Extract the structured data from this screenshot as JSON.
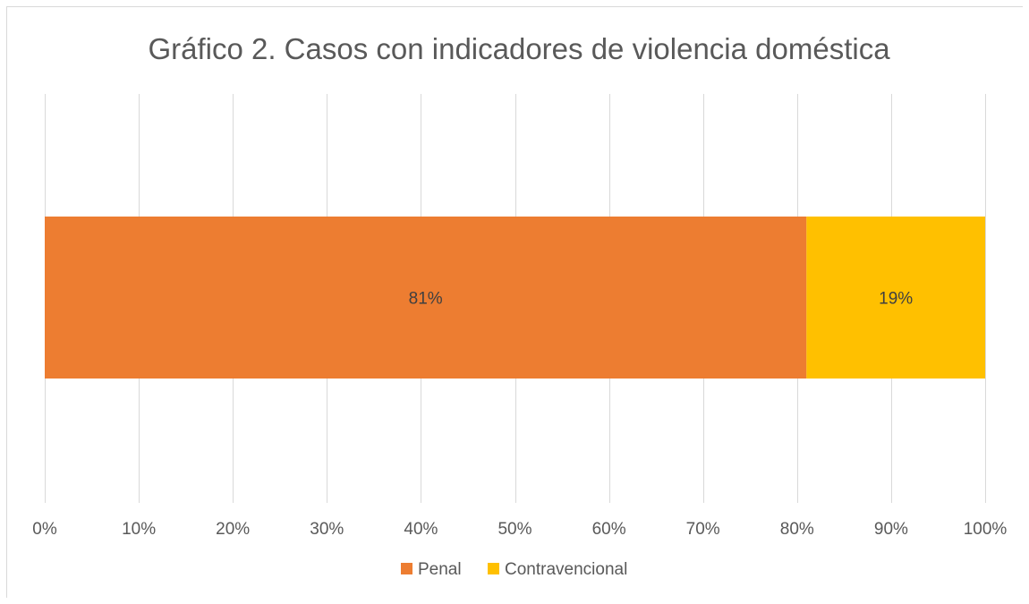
{
  "chart_data": {
    "type": "bar",
    "orientation": "horizontal",
    "stacked": true,
    "title": "Gráfico 2. Casos con indicadores de violencia doméstica",
    "categories": [
      ""
    ],
    "series": [
      {
        "name": "Penal",
        "values": [
          81
        ],
        "label": "81%",
        "color": "#ED7D31"
      },
      {
        "name": "Contravencional",
        "values": [
          19
        ],
        "label": "19%",
        "color": "#FFC000"
      }
    ],
    "xlim": [
      0,
      100
    ],
    "x_ticks": [
      0,
      10,
      20,
      30,
      40,
      50,
      60,
      70,
      80,
      90,
      100
    ],
    "x_tick_labels": [
      "0%",
      "10%",
      "20%",
      "30%",
      "40%",
      "50%",
      "60%",
      "70%",
      "80%",
      "90%",
      "100%"
    ],
    "grid": true,
    "legend": "bottom",
    "grid_color": "#d9d9d9"
  }
}
